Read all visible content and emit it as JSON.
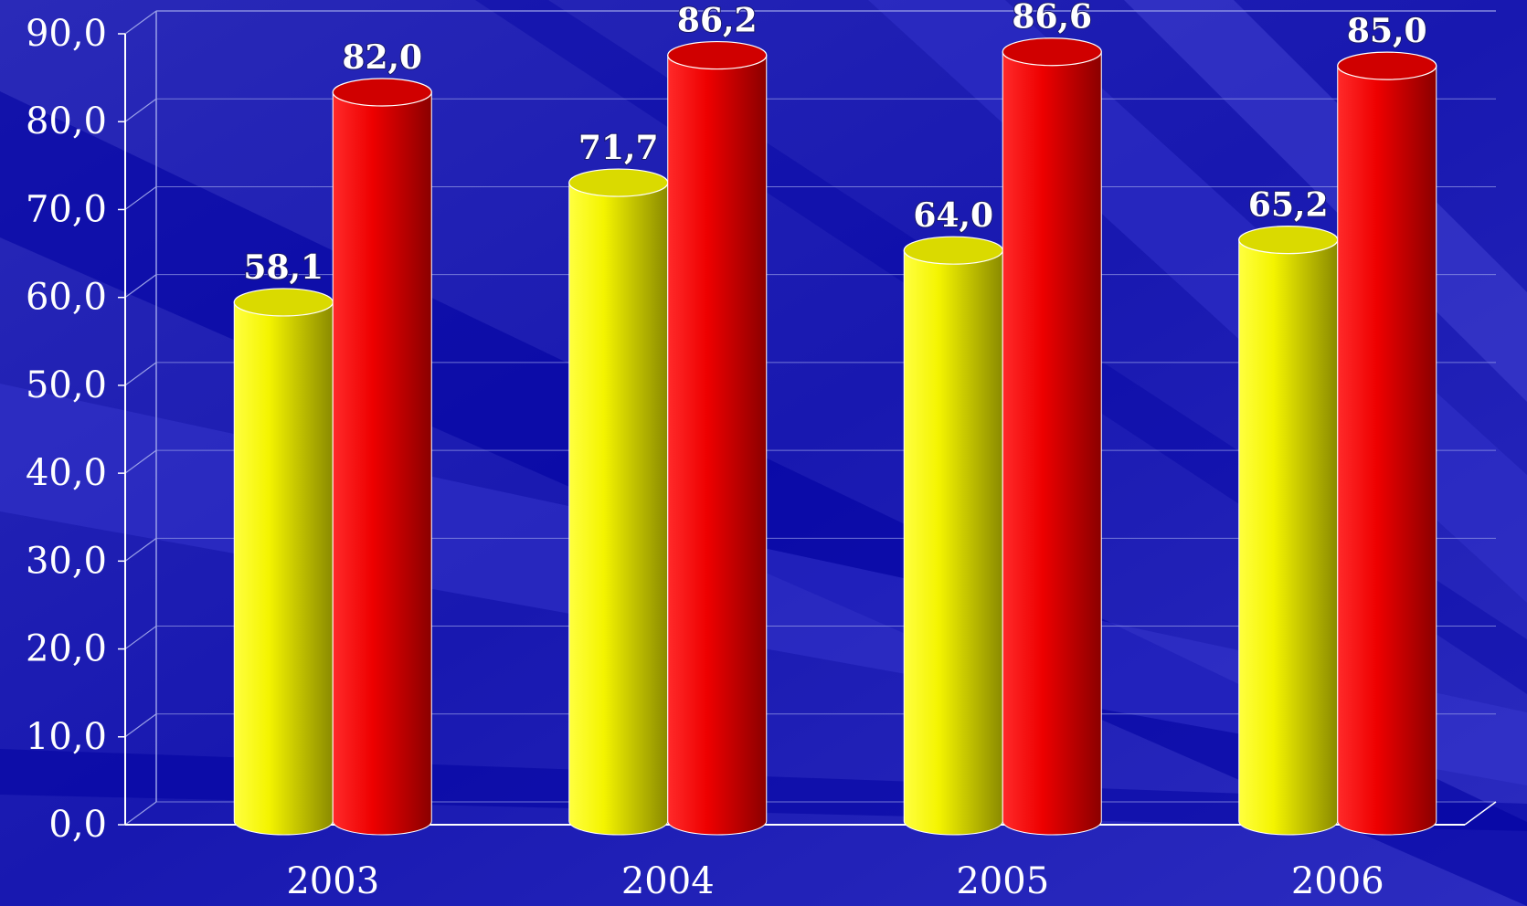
{
  "chart_data": {
    "type": "bar",
    "categories": [
      "2003",
      "2004",
      "2005",
      "2006"
    ],
    "series": [
      {
        "color": "#f2f200",
        "values": [
          58.1,
          71.7,
          64.0,
          65.2
        ],
        "labels": [
          "58,1",
          "71,7",
          "64,0",
          "65,2"
        ]
      },
      {
        "color": "#e00000",
        "values": [
          82.0,
          86.2,
          86.6,
          85.0
        ],
        "labels": [
          "82,0",
          "86,2",
          "86,6",
          "85,0"
        ]
      }
    ],
    "y_ticks": [
      "0,0",
      "10,0",
      "20,0",
      "30,0",
      "40,0",
      "50,0",
      "60,0",
      "70,0",
      "80,0",
      "90,0"
    ],
    "ylim": [
      0,
      90
    ],
    "title": "",
    "xlabel": "",
    "ylabel": "",
    "grid": true,
    "legend": "none",
    "bar_shape": "3d-cylinder",
    "background_color": "#0a0aa0"
  }
}
